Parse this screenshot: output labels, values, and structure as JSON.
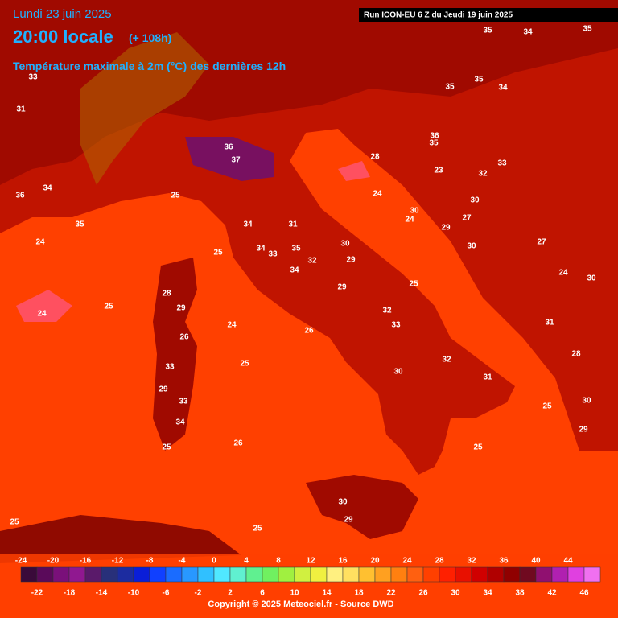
{
  "header": {
    "date": "Lundi 23 juin 2025",
    "time": "20:00 locale",
    "lead": "(+ 108h)",
    "subtitle": "Température maximale à 2m (°C) des dernières 12h",
    "run": "Run ICON-EU 6 Z du Jeudi 19 juin 2025"
  },
  "map": {
    "labels": [
      35,
      34,
      35,
      35,
      35,
      34,
      33,
      31,
      36,
      37,
      36,
      35,
      33,
      25,
      24,
      35,
      36,
      34,
      34,
      31,
      34,
      33,
      35,
      32,
      30,
      29,
      34,
      25,
      25,
      29,
      25,
      24,
      24,
      29,
      28,
      26,
      32,
      33,
      26,
      32,
      30,
      31,
      25,
      33,
      29,
      33,
      34,
      26,
      25,
      25,
      29,
      30,
      25,
      30,
      29,
      25,
      25,
      30,
      24,
      29,
      27,
      30,
      27,
      24,
      30,
      31,
      28,
      24,
      28,
      23,
      32,
      30
    ]
  },
  "legend": {
    "top_labels": [
      -24,
      -20,
      -16,
      -12,
      -8,
      -4,
      0,
      4,
      8,
      12,
      16,
      20,
      24,
      28,
      32,
      36,
      40,
      44
    ],
    "bottom_labels": [
      -22,
      -18,
      -14,
      -10,
      -6,
      -2,
      2,
      6,
      10,
      14,
      18,
      22,
      26,
      30,
      34,
      38,
      42,
      46
    ],
    "colors": [
      "#3a0a3a",
      "#5a0a5a",
      "#7a107a",
      "#901890",
      "#5a1a6a",
      "#28307a",
      "#1c2ca0",
      "#0a1ed8",
      "#1040ff",
      "#1a6cff",
      "#2898ff",
      "#30c0ff",
      "#50e8ff",
      "#60f0d0",
      "#60f090",
      "#70f060",
      "#a0f040",
      "#d0f040",
      "#f0f040",
      "#fff080",
      "#ffe060",
      "#ffc030",
      "#ffa020",
      "#ff8010",
      "#ff6010",
      "#ff4000",
      "#ff2000",
      "#e81000",
      "#d00000",
      "#b00000",
      "#900000",
      "#700a20",
      "#901070",
      "#b020b0",
      "#e040e0",
      "#f070f0"
    ]
  },
  "footer": {
    "copyright": "Copyright © 2025 Meteociel.fr - Source DWD"
  }
}
